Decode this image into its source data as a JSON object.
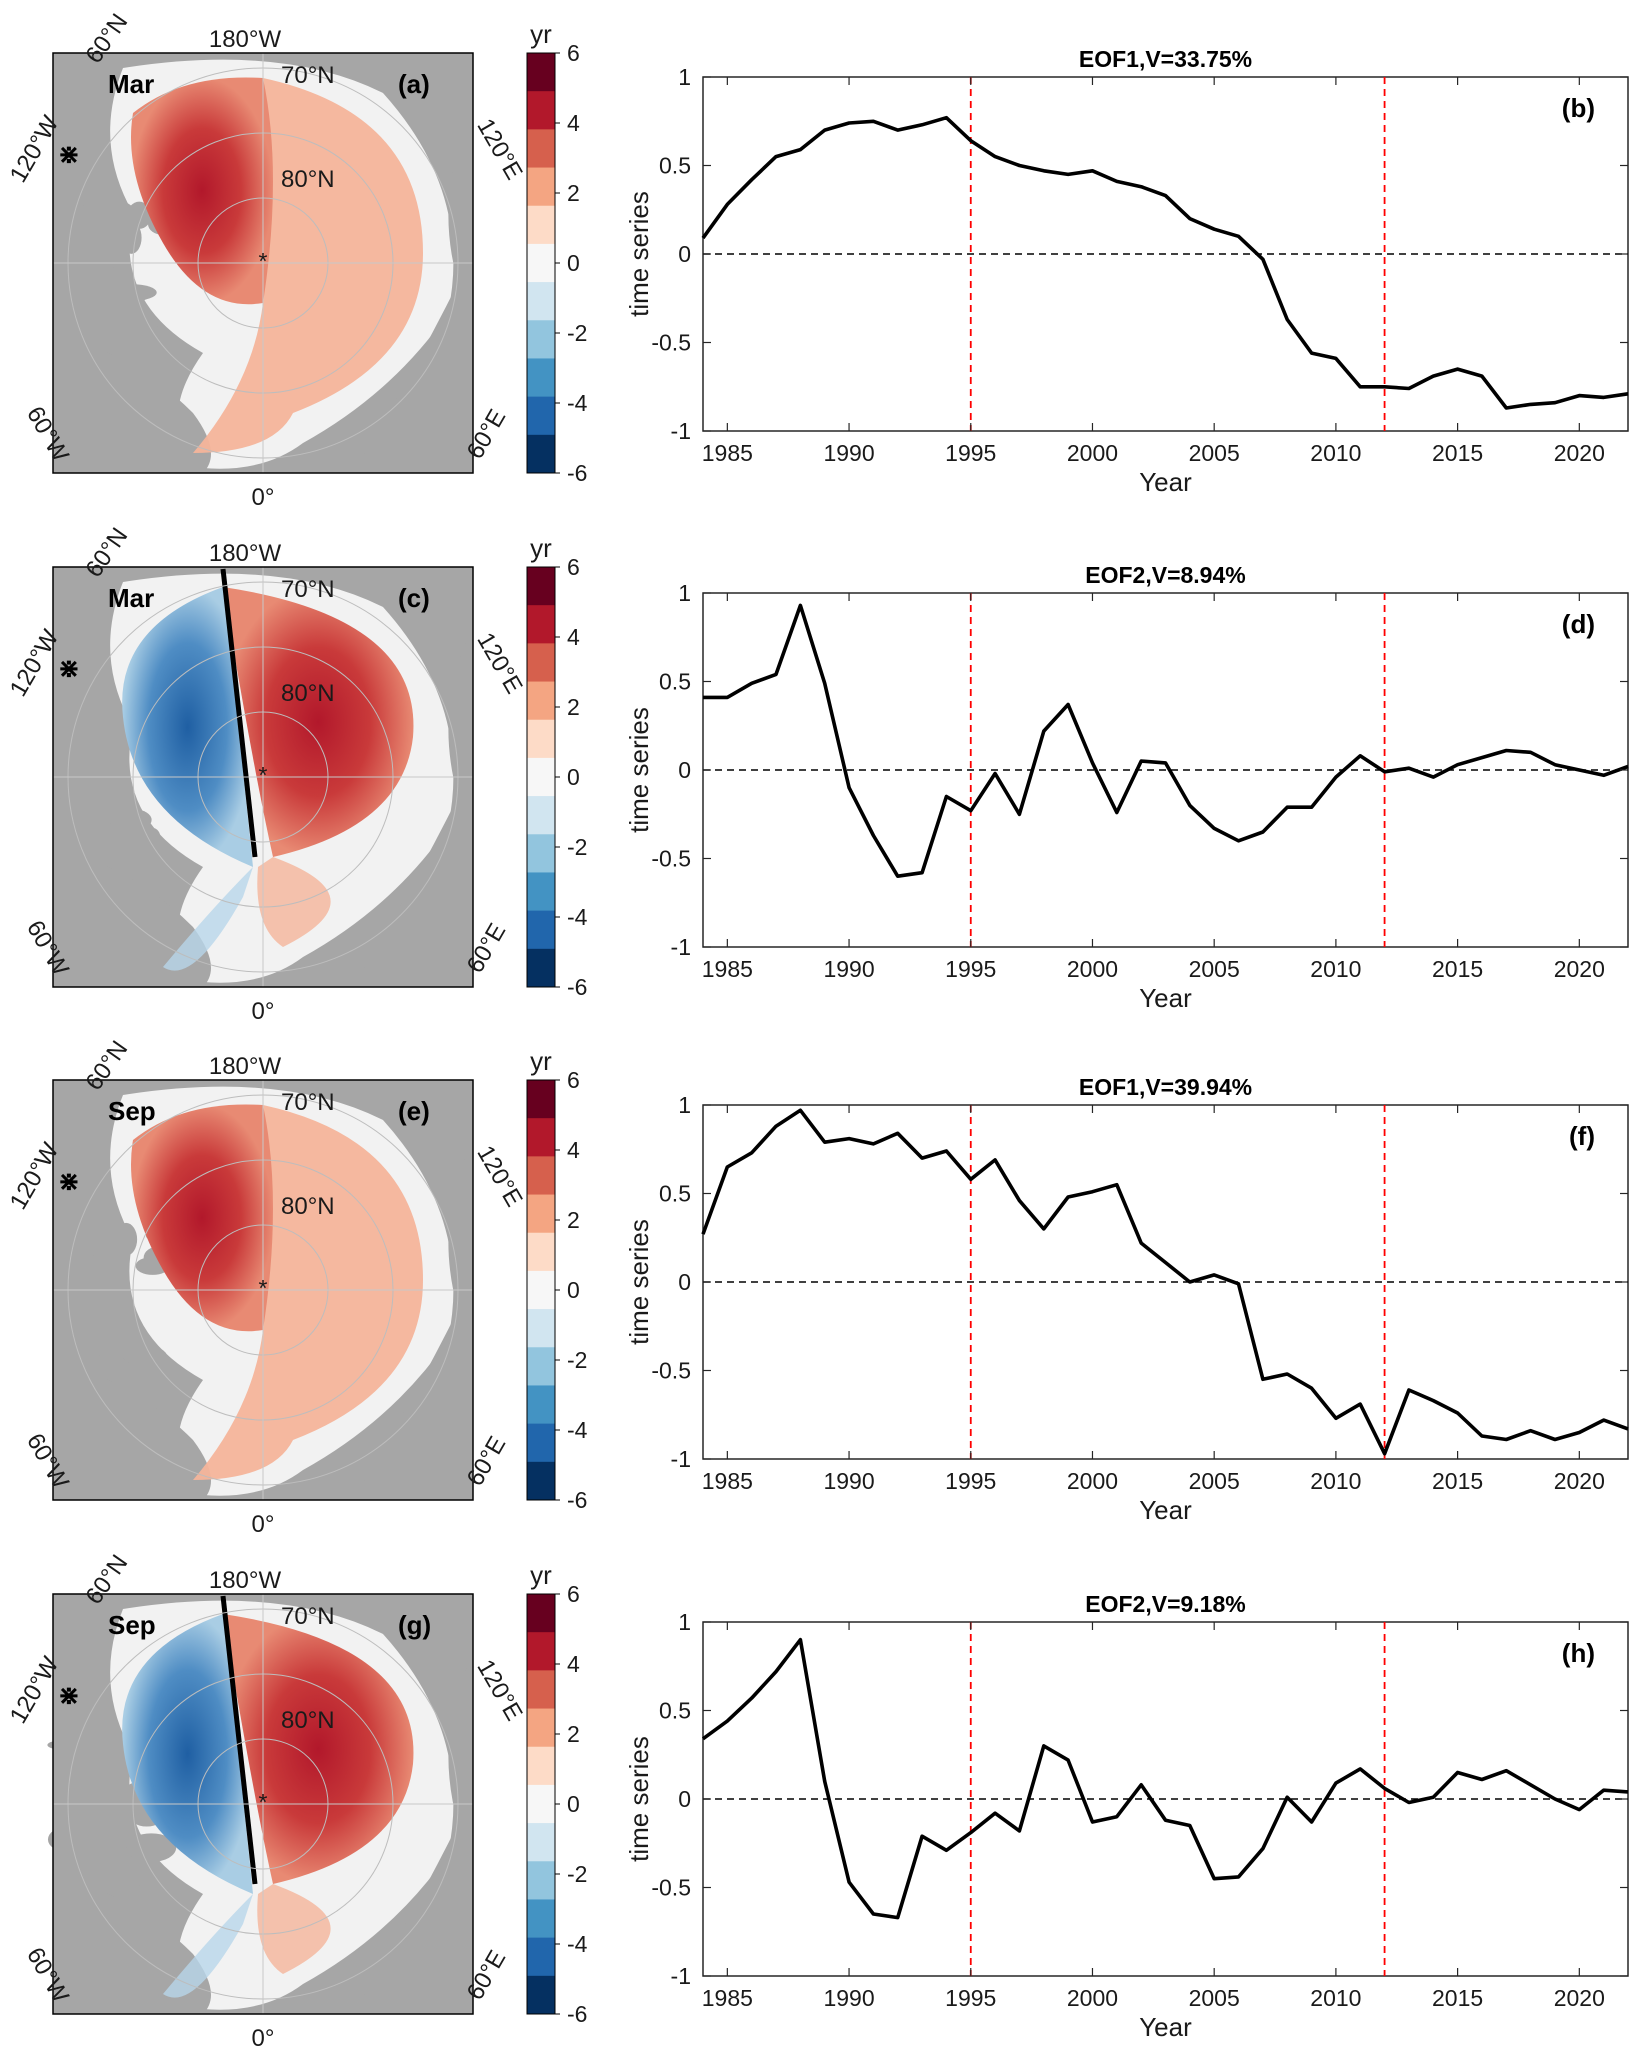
{
  "figure": {
    "colorbar": {
      "unit": "yr",
      "ticks": [
        "6",
        "4",
        "2",
        "0",
        "-2",
        "-4",
        "-6"
      ],
      "colors": [
        "#67001f",
        "#b2182b",
        "#d6604d",
        "#f4a582",
        "#fddbc7",
        "#f7f7f7",
        "#d1e5f0",
        "#92c5de",
        "#4393c3",
        "#2166ac",
        "#053061"
      ]
    },
    "map_labels": {
      "lon_top": "180°W",
      "lon_bottom": "0°",
      "lon_upper_left": "60°N",
      "lon_left_upper": "120°W",
      "lon_left_lower": "60°W",
      "lon_right_upper": "120°E",
      "lon_right_lower": "60°E",
      "lat_70": "70°N",
      "lat_80": "80°N"
    },
    "maps": [
      {
        "panel": "(a)",
        "month": "Mar",
        "pattern": "eof1"
      },
      {
        "panel": "(c)",
        "month": "Mar",
        "pattern": "eof2"
      },
      {
        "panel": "(e)",
        "month": "Sep",
        "pattern": "eof1"
      },
      {
        "panel": "(g)",
        "month": "Sep",
        "pattern": "eof2"
      }
    ],
    "colors": {
      "land": "#a6a6a6",
      "ocean": "#f2f2f2",
      "series_line": "#000000",
      "marker_line": "#ff0000"
    }
  },
  "chart_data": [
    {
      "type": "line",
      "panel": "(b)",
      "title": "EOF1,V=33.75%",
      "xlabel": "Year",
      "ylabel": "time series",
      "xlim": [
        1984,
        2022
      ],
      "ylim": [
        -1,
        1
      ],
      "xticks": [
        1985,
        1990,
        1995,
        2000,
        2005,
        2010,
        2015,
        2020
      ],
      "yticks": [
        1,
        0.5,
        0,
        -0.5,
        -1
      ],
      "reference_lines": {
        "vertical": [
          1995,
          2012
        ],
        "horizontal": 0
      },
      "x": [
        1984,
        1985,
        1986,
        1987,
        1988,
        1989,
        1990,
        1991,
        1992,
        1993,
        1994,
        1995,
        1996,
        1997,
        1998,
        1999,
        2000,
        2001,
        2002,
        2003,
        2004,
        2005,
        2006,
        2007,
        2008,
        2009,
        2010,
        2011,
        2012,
        2013,
        2014,
        2015,
        2016,
        2017,
        2018,
        2019,
        2020,
        2021,
        2022
      ],
      "values": [
        0.09,
        0.28,
        0.42,
        0.55,
        0.59,
        0.7,
        0.74,
        0.75,
        0.7,
        0.73,
        0.77,
        0.64,
        0.55,
        0.5,
        0.47,
        0.45,
        0.47,
        0.41,
        0.38,
        0.33,
        0.2,
        0.14,
        0.1,
        -0.03,
        -0.37,
        -0.56,
        -0.59,
        -0.75,
        -0.75,
        -0.76,
        -0.69,
        -0.65,
        -0.69,
        -0.87,
        -0.85,
        -0.84,
        -0.8,
        -0.81,
        -0.79
      ]
    },
    {
      "type": "line",
      "panel": "(d)",
      "title": "EOF2,V=8.94%",
      "xlabel": "Year",
      "ylabel": "time series",
      "xlim": [
        1984,
        2022
      ],
      "ylim": [
        -1,
        1
      ],
      "xticks": [
        1985,
        1990,
        1995,
        2000,
        2005,
        2010,
        2015,
        2020
      ],
      "yticks": [
        1,
        0.5,
        0,
        -0.5,
        -1
      ],
      "reference_lines": {
        "vertical": [
          1995,
          2012
        ],
        "horizontal": 0
      },
      "x": [
        1984,
        1985,
        1986,
        1987,
        1988,
        1989,
        1990,
        1991,
        1992,
        1993,
        1994,
        1995,
        1996,
        1997,
        1998,
        1999,
        2000,
        2001,
        2002,
        2003,
        2004,
        2005,
        2006,
        2007,
        2008,
        2009,
        2010,
        2011,
        2012,
        2013,
        2014,
        2015,
        2016,
        2017,
        2018,
        2019,
        2020,
        2021,
        2022
      ],
      "values": [
        0.41,
        0.41,
        0.49,
        0.54,
        0.93,
        0.49,
        -0.1,
        -0.37,
        -0.6,
        -0.58,
        -0.15,
        -0.23,
        -0.02,
        -0.25,
        0.22,
        0.37,
        0.04,
        -0.24,
        0.05,
        0.04,
        -0.2,
        -0.33,
        -0.4,
        -0.35,
        -0.21,
        -0.21,
        -0.04,
        0.08,
        -0.01,
        0.01,
        -0.04,
        0.03,
        0.07,
        0.11,
        0.1,
        0.03,
        0.0,
        -0.03,
        0.02
      ]
    },
    {
      "type": "line",
      "panel": "(f)",
      "title": "EOF1,V=39.94%",
      "xlabel": "Year",
      "ylabel": "time series",
      "xlim": [
        1984,
        2022
      ],
      "ylim": [
        -1,
        1
      ],
      "xticks": [
        1985,
        1990,
        1995,
        2000,
        2005,
        2010,
        2015,
        2020
      ],
      "yticks": [
        1,
        0.5,
        0,
        -0.5,
        -1
      ],
      "reference_lines": {
        "vertical": [
          1995,
          2012
        ],
        "horizontal": 0
      },
      "x": [
        1984,
        1985,
        1986,
        1987,
        1988,
        1989,
        1990,
        1991,
        1992,
        1993,
        1994,
        1995,
        1996,
        1997,
        1998,
        1999,
        2000,
        2001,
        2002,
        2003,
        2004,
        2005,
        2006,
        2007,
        2008,
        2009,
        2010,
        2011,
        2012,
        2013,
        2014,
        2015,
        2016,
        2017,
        2018,
        2019,
        2020,
        2021,
        2022
      ],
      "values": [
        0.27,
        0.65,
        0.73,
        0.88,
        0.97,
        0.79,
        0.81,
        0.78,
        0.84,
        0.7,
        0.74,
        0.58,
        0.69,
        0.46,
        0.3,
        0.48,
        0.51,
        0.55,
        0.22,
        0.11,
        0.0,
        0.04,
        -0.01,
        -0.55,
        -0.52,
        -0.6,
        -0.77,
        -0.69,
        -0.97,
        -0.61,
        -0.67,
        -0.74,
        -0.87,
        -0.89,
        -0.84,
        -0.89,
        -0.85,
        -0.78,
        -0.83
      ]
    },
    {
      "type": "line",
      "panel": "(h)",
      "title": "EOF2,V=9.18%",
      "xlabel": "Year",
      "ylabel": "time series",
      "xlim": [
        1984,
        2022
      ],
      "ylim": [
        -1,
        1
      ],
      "xticks": [
        1985,
        1990,
        1995,
        2000,
        2005,
        2010,
        2015,
        2020
      ],
      "yticks": [
        1,
        0.5,
        0,
        -0.5,
        -1
      ],
      "reference_lines": {
        "vertical": [
          1995,
          2012
        ],
        "horizontal": 0
      },
      "x": [
        1984,
        1985,
        1986,
        1987,
        1988,
        1989,
        1990,
        1991,
        1992,
        1993,
        1994,
        1995,
        1996,
        1997,
        1998,
        1999,
        2000,
        2001,
        2002,
        2003,
        2004,
        2005,
        2006,
        2007,
        2008,
        2009,
        2010,
        2011,
        2012,
        2013,
        2014,
        2015,
        2016,
        2017,
        2018,
        2019,
        2020,
        2021,
        2022
      ],
      "values": [
        0.34,
        0.44,
        0.57,
        0.72,
        0.9,
        0.1,
        -0.47,
        -0.65,
        -0.67,
        -0.21,
        -0.29,
        -0.19,
        -0.08,
        -0.18,
        0.3,
        0.22,
        -0.13,
        -0.1,
        0.08,
        -0.12,
        -0.15,
        -0.45,
        -0.44,
        -0.28,
        0.01,
        -0.13,
        0.09,
        0.17,
        0.06,
        -0.02,
        0.01,
        0.15,
        0.11,
        0.16,
        0.08,
        0.0,
        -0.06,
        0.05,
        0.04
      ]
    }
  ]
}
